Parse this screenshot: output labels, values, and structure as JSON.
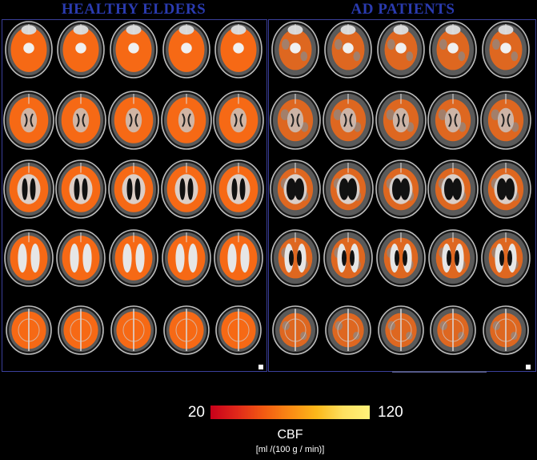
{
  "panels": {
    "left_title": "HEALTHY ELDERS",
    "right_title": "AD PATIENTS",
    "title_color": "#2a3bb0",
    "frame_color": "#3a3f9a"
  },
  "grid": {
    "rows": 5,
    "cols_per_panel": 5,
    "perfusion_color": "#ff6a12"
  },
  "colorbar": {
    "min_label": "20",
    "max_label": "120",
    "title": "CBF",
    "unit": "[ml /(100 g / min)]",
    "stops": [
      "#c8001a",
      "#e0281a",
      "#f25a12",
      "#fa8a14",
      "#fcb81a",
      "#fde060",
      "#fff27a"
    ]
  }
}
